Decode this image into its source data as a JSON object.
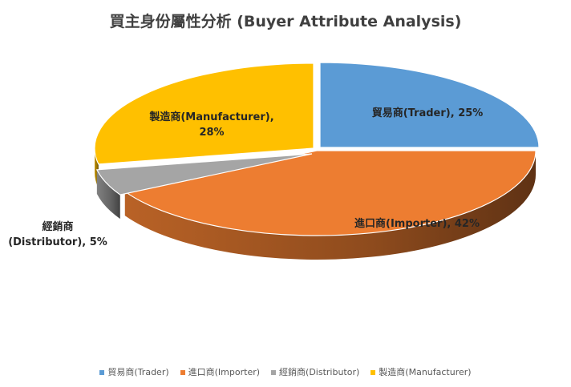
{
  "chart_data": {
    "type": "pie",
    "title": "買主身份屬性分析 (Buyer Attribute  Analysis)",
    "categories": [
      "貿易商(Trader)",
      "進口商(Importer)",
      "經銷商(Distributor)",
      "製造商(Manufacturer)"
    ],
    "values": [
      25,
      42,
      5,
      28
    ],
    "colors": [
      "#5B9BD5",
      "#ED7D31",
      "#A5A5A5",
      "#FFC000"
    ],
    "data_labels": [
      [
        "貿易商(Trader), 25%"
      ],
      [
        "進口商(Importer), 42%"
      ],
      [
        "經銷商",
        "(Distributor), 5%"
      ],
      [
        "製造商(Manufacturer),",
        "28%"
      ]
    ],
    "style": "3d-exploded",
    "legend_position": "bottom"
  }
}
